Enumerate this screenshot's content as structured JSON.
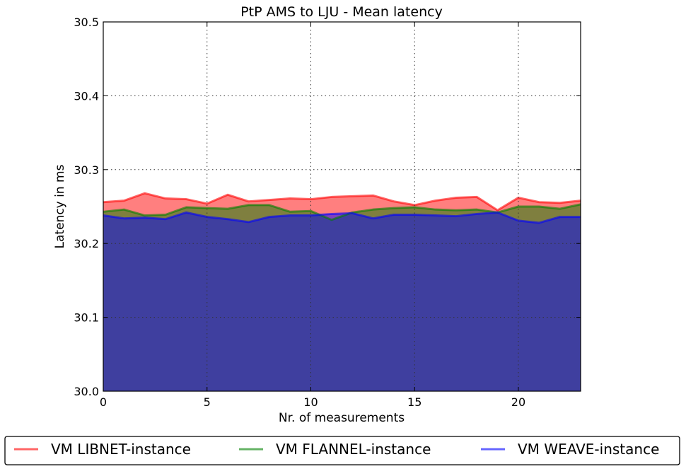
{
  "chart_data": {
    "type": "area",
    "title": "PtP AMS to LJU -  Mean latency",
    "xlabel": "Nr. of measurements",
    "ylabel": "Latency in ms",
    "xlim": [
      0,
      23
    ],
    "ylim": [
      30.0,
      30.5
    ],
    "x_ticks": [
      0,
      5,
      10,
      15,
      20
    ],
    "x_tick_labels": [
      "0",
      "5",
      "10",
      "15",
      "20"
    ],
    "y_ticks": [
      30.0,
      30.1,
      30.2,
      30.3,
      30.4,
      30.5
    ],
    "y_tick_labels": [
      "30.0",
      "30.1",
      "30.2",
      "30.3",
      "30.4",
      "30.5"
    ],
    "grid": true,
    "legend_position": "bottom",
    "x": [
      0,
      1,
      2,
      3,
      4,
      5,
      6,
      7,
      8,
      9,
      10,
      11,
      12,
      13,
      14,
      15,
      16,
      17,
      18,
      19,
      20,
      21,
      22,
      23
    ],
    "series": [
      {
        "name": "VM LIBNET-instance",
        "color": "#ff0000",
        "values": [
          30.256,
          30.258,
          30.268,
          30.261,
          30.26,
          30.254,
          30.266,
          30.257,
          30.259,
          30.261,
          30.26,
          30.263,
          30.264,
          30.265,
          30.257,
          30.252,
          30.258,
          30.262,
          30.263,
          30.245,
          30.262,
          30.256,
          30.255,
          30.258
        ]
      },
      {
        "name": "VM FLANNEL-instance",
        "color": "#008000",
        "values": [
          30.243,
          30.246,
          30.238,
          30.239,
          30.249,
          30.248,
          30.247,
          30.252,
          30.252,
          30.243,
          30.244,
          30.232,
          30.242,
          30.246,
          30.248,
          30.249,
          30.246,
          30.245,
          30.246,
          30.242,
          30.25,
          30.25,
          30.247,
          30.253
        ]
      },
      {
        "name": "VM WEAVE-instance",
        "color": "#0000ff",
        "values": [
          30.238,
          30.234,
          30.235,
          30.233,
          30.242,
          30.236,
          30.233,
          30.229,
          30.236,
          30.238,
          30.238,
          30.24,
          30.241,
          30.234,
          30.239,
          30.239,
          30.238,
          30.237,
          30.24,
          30.242,
          30.231,
          30.228,
          30.236,
          30.236
        ]
      }
    ]
  }
}
